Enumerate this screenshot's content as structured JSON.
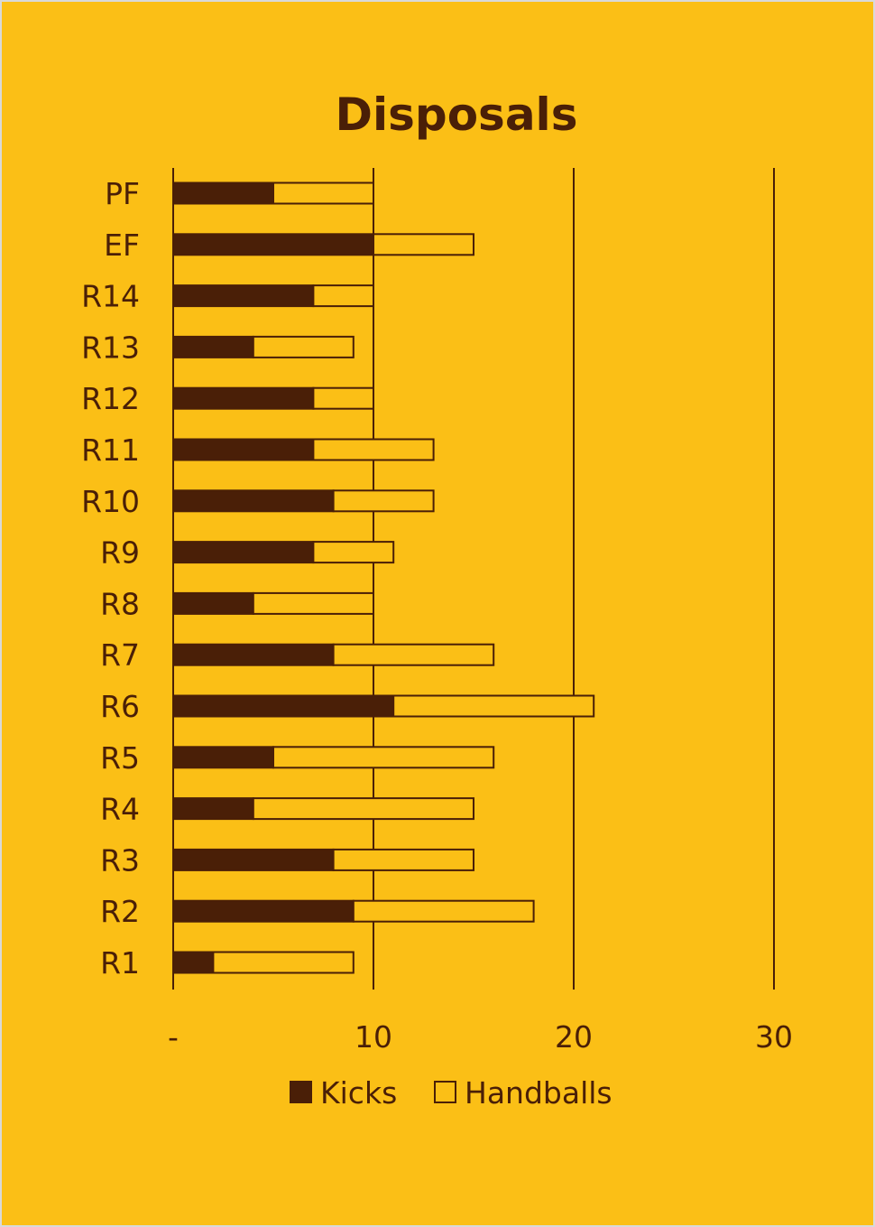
{
  "chart_data": {
    "type": "bar",
    "orientation": "horizontal",
    "stacked": true,
    "title": "Disposals",
    "categories": [
      "PF",
      "EF",
      "R14",
      "R13",
      "R12",
      "R11",
      "R10",
      "R9",
      "R8",
      "R7",
      "R6",
      "R5",
      "R4",
      "R3",
      "R2",
      "R1"
    ],
    "series": [
      {
        "name": "Kicks",
        "values": [
          5,
          10,
          7,
          4,
          7,
          7,
          8,
          7,
          4,
          8,
          11,
          5,
          4,
          8,
          9,
          2
        ]
      },
      {
        "name": "Handballs",
        "values": [
          5,
          5,
          3,
          5,
          3,
          6,
          5,
          4,
          6,
          8,
          10,
          11,
          11,
          7,
          9,
          7
        ]
      }
    ],
    "xlim": [
      0,
      30
    ],
    "xticks": [
      "-",
      "10",
      "20",
      "30"
    ],
    "grid": "vertical",
    "legend": "bottom",
    "colors": {
      "background": "#FBBF16",
      "kicks": "#4A1F07",
      "handballs": "#FBBF16",
      "text": "#4A1F07"
    }
  }
}
